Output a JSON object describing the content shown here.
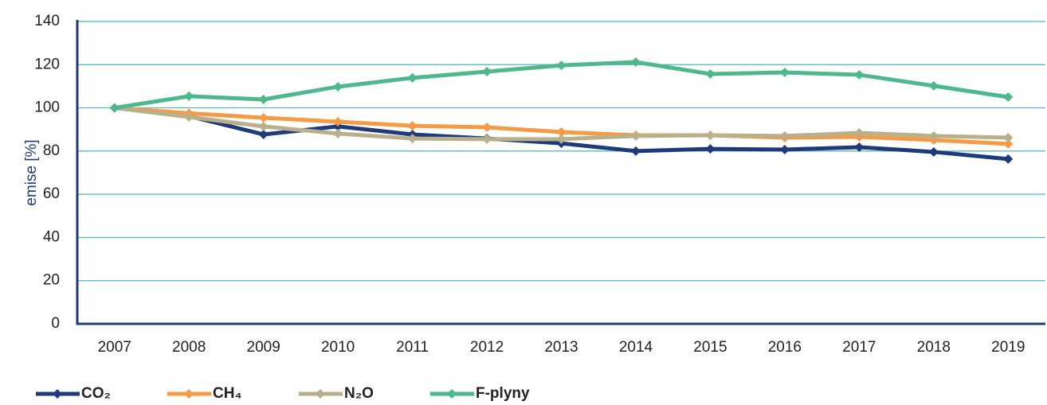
{
  "chart_data": {
    "type": "line",
    "y_label": "emise [%]",
    "categories": [
      "2007",
      "2008",
      "2009",
      "2010",
      "2011",
      "2012",
      "2013",
      "2014",
      "2015",
      "2016",
      "2017",
      "2018",
      "2019"
    ],
    "series": [
      {
        "name": "CO₂",
        "color": "#1f3a7a",
        "values": [
          100,
          96.2,
          87.7,
          91.4,
          87.7,
          85.8,
          83.6,
          80,
          81,
          80.7,
          81.8,
          79.6,
          76.3
        ]
      },
      {
        "name": "CH₄",
        "color": "#f59a45",
        "values": [
          100,
          97.5,
          95.4,
          93.6,
          91.7,
          91,
          88.8,
          87.3,
          87.3,
          86.2,
          86.6,
          85.1,
          83.3
        ]
      },
      {
        "name": "N₂O",
        "color": "#b9b08b",
        "values": [
          100,
          95.8,
          91.4,
          88.1,
          85.8,
          85.5,
          85.5,
          87,
          87.3,
          87,
          88.4,
          87,
          86.2
        ]
      },
      {
        "name": "F-plyny",
        "color": "#4db88c",
        "values": [
          100,
          105.4,
          103.9,
          109.8,
          113.9,
          116.8,
          119.7,
          121.2,
          115.7,
          116.4,
          115.3,
          110.2,
          105
        ]
      }
    ],
    "ylim": [
      0,
      140
    ],
    "yticks": [
      0,
      20,
      40,
      60,
      80,
      100,
      120,
      140
    ],
    "grid": true,
    "grid_color": "#4cb4c2",
    "axis_color": "#1f3a7a",
    "legend": "bottom"
  }
}
